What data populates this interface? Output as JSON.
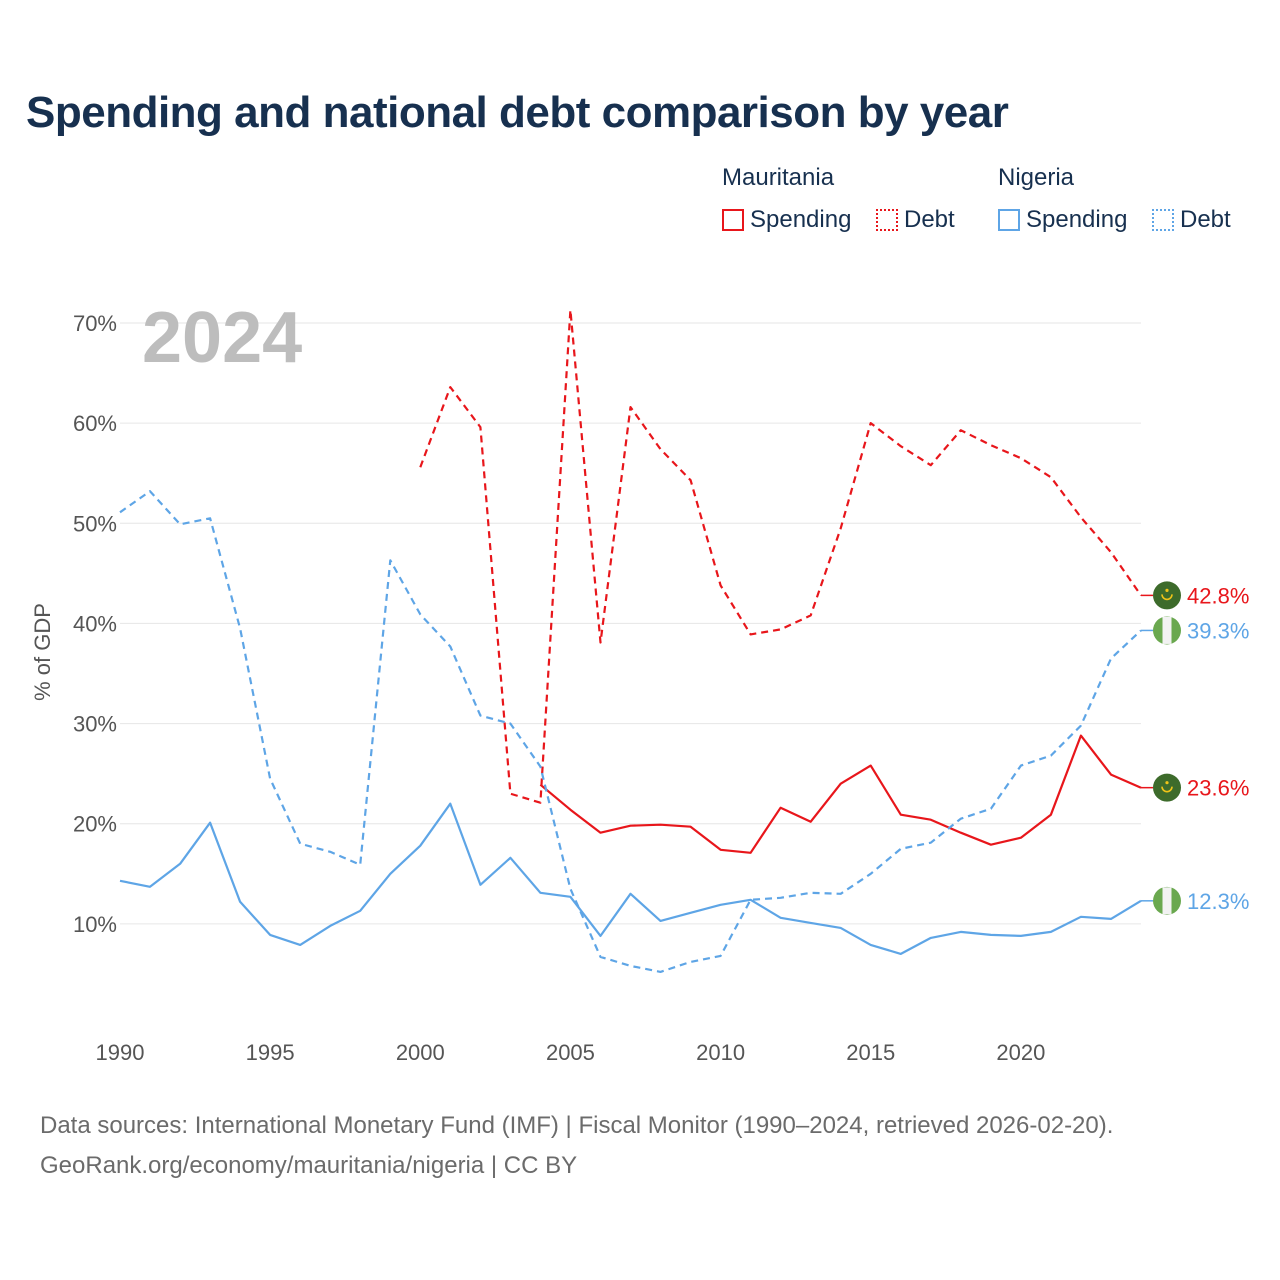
{
  "title": "Spending and national debt comparison by year",
  "legend": {
    "groups": [
      {
        "name": "Mauritania",
        "items": [
          {
            "label": "Spending",
            "style": "solid",
            "color": "#e8161b"
          },
          {
            "label": "Debt",
            "style": "dotted",
            "color": "#e8161b"
          }
        ]
      },
      {
        "name": "Nigeria",
        "items": [
          {
            "label": "Spending",
            "style": "solid",
            "color": "#5ea5e6"
          },
          {
            "label": "Debt",
            "style": "dotted",
            "color": "#5ea5e6"
          }
        ]
      }
    ]
  },
  "source": {
    "line1": "Data sources: International Monetary Fund (IMF) | Fiscal Monitor (1990–2024, retrieved 2026-02-20).",
    "line2": "GeoRank.org/economy/mauritania/nigeria | CC BY"
  },
  "chart_data": {
    "type": "line",
    "title": "Spending and national debt comparison by year",
    "year_label": "2024",
    "ylabel": "% of GDP",
    "xlabel": "",
    "xlim": [
      1990,
      2024
    ],
    "ylim": [
      0,
      70
    ],
    "x_ticks": [
      1990,
      1995,
      2000,
      2005,
      2010,
      2015,
      2020
    ],
    "y_ticks": [
      10,
      20,
      30,
      40,
      50,
      60,
      70
    ],
    "y_tick_labels": [
      "10%",
      "20%",
      "30%",
      "40%",
      "50%",
      "60%",
      "70%"
    ],
    "grid": true,
    "legend_position": "top-right",
    "series": [
      {
        "name": "Mauritania Spending",
        "country": "Mauritania",
        "metric": "Spending",
        "color": "#e8161b",
        "dash": false,
        "flag": "mauritania",
        "end_label": "23.6%",
        "x": [
          2004,
          2005,
          2006,
          2007,
          2008,
          2009,
          2010,
          2011,
          2012,
          2013,
          2014,
          2015,
          2016,
          2017,
          2018,
          2019,
          2020,
          2021,
          2022,
          2023,
          2024
        ],
        "values": [
          23.9,
          21.4,
          19.1,
          19.8,
          19.9,
          19.7,
          17.4,
          17.1,
          21.6,
          20.2,
          24.0,
          25.8,
          20.9,
          20.4,
          19.1,
          17.9,
          18.6,
          20.9,
          28.8,
          24.9,
          23.6
        ]
      },
      {
        "name": "Mauritania Debt",
        "country": "Mauritania",
        "metric": "Debt",
        "color": "#e8161b",
        "dash": true,
        "flag": "mauritania",
        "end_label": "42.8%",
        "x": [
          2000,
          2001,
          2002,
          2003,
          2004,
          2005,
          2006,
          2007,
          2008,
          2009,
          2010,
          2011,
          2012,
          2013,
          2014,
          2015,
          2016,
          2017,
          2018,
          2019,
          2020,
          2021,
          2022,
          2023,
          2024
        ],
        "values": [
          55.6,
          63.6,
          59.6,
          23.0,
          22.1,
          71.3,
          38.1,
          61.6,
          57.4,
          54.3,
          43.8,
          38.9,
          39.4,
          40.8,
          49.5,
          60.0,
          57.7,
          55.8,
          59.3,
          57.8,
          56.5,
          54.6,
          50.6,
          47.1,
          42.8
        ]
      },
      {
        "name": "Nigeria Spending",
        "country": "Nigeria",
        "metric": "Spending",
        "color": "#5ea5e6",
        "dash": false,
        "flag": "nigeria",
        "end_label": "12.3%",
        "x": [
          1990,
          1991,
          1992,
          1993,
          1994,
          1995,
          1996,
          1997,
          1998,
          1999,
          2000,
          2001,
          2002,
          2003,
          2004,
          2005,
          2006,
          2007,
          2008,
          2009,
          2010,
          2011,
          2012,
          2013,
          2014,
          2015,
          2016,
          2017,
          2018,
          2019,
          2020,
          2021,
          2022,
          2023,
          2024
        ],
        "values": [
          14.3,
          13.7,
          16.0,
          20.1,
          12.2,
          8.9,
          7.9,
          9.8,
          11.3,
          15.0,
          17.8,
          22.0,
          13.9,
          16.6,
          13.1,
          12.7,
          8.8,
          13.0,
          10.3,
          11.1,
          11.9,
          12.4,
          10.6,
          10.1,
          9.6,
          7.9,
          7.0,
          8.6,
          9.2,
          8.9,
          8.8,
          9.2,
          10.7,
          10.5,
          12.3
        ]
      },
      {
        "name": "Nigeria Debt",
        "country": "Nigeria",
        "metric": "Debt",
        "color": "#5ea5e6",
        "dash": true,
        "flag": "nigeria",
        "end_label": "39.3%",
        "x": [
          1990,
          1991,
          1992,
          1993,
          1994,
          1995,
          1996,
          1997,
          1998,
          1999,
          2000,
          2001,
          2002,
          2003,
          2004,
          2005,
          2006,
          2007,
          2008,
          2009,
          2010,
          2011,
          2012,
          2013,
          2014,
          2015,
          2016,
          2017,
          2018,
          2019,
          2020,
          2021,
          2022,
          2023,
          2024
        ],
        "values": [
          51.1,
          53.2,
          49.9,
          50.5,
          39.5,
          24.5,
          18.0,
          17.2,
          15.9,
          46.3,
          40.9,
          37.7,
          30.8,
          30.0,
          25.7,
          13.5,
          6.7,
          5.8,
          5.2,
          6.2,
          6.8,
          12.4,
          12.6,
          13.1,
          13.0,
          15.0,
          17.5,
          18.1,
          20.5,
          21.5,
          25.8,
          26.8,
          29.8,
          36.5,
          39.3
        ]
      }
    ]
  }
}
